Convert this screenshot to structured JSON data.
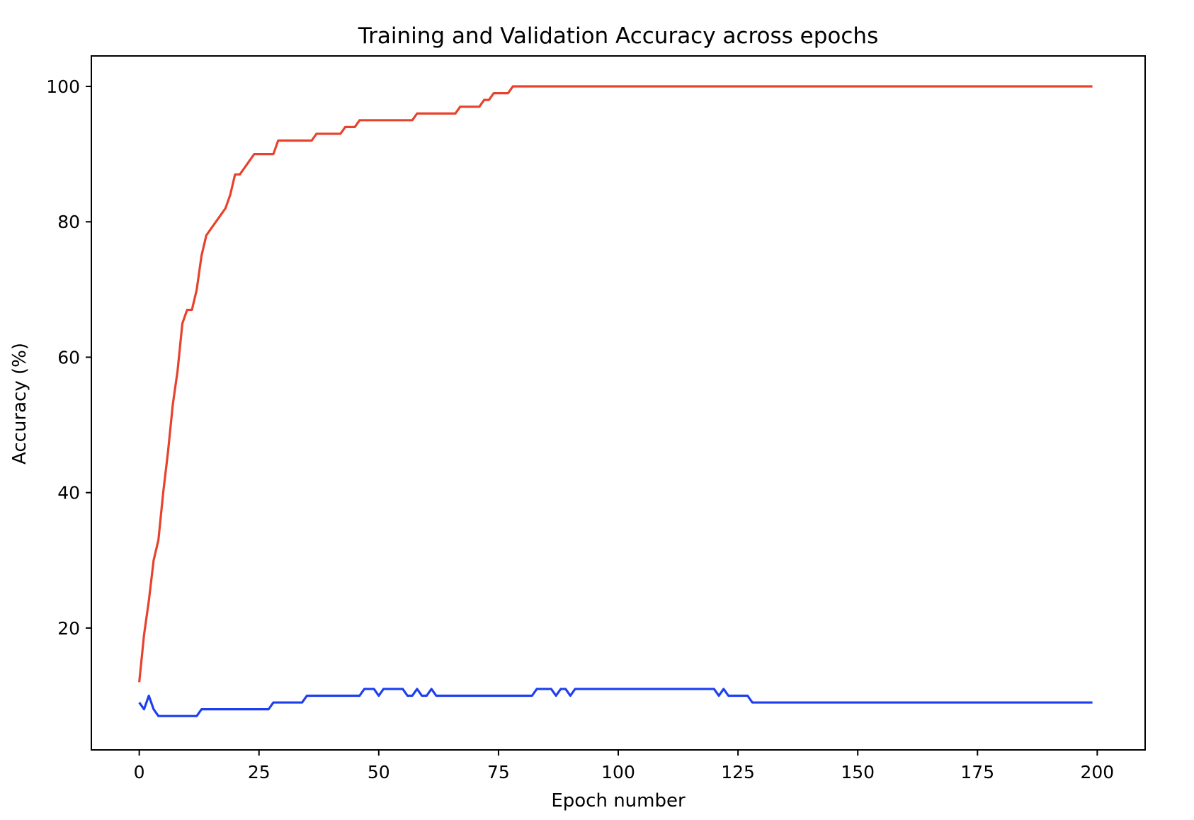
{
  "chart_data": {
    "type": "line",
    "title": "Training and Validation Accuracy across epochs",
    "xlabel": "Epoch number",
    "ylabel": "Accuracy (%)",
    "xlim": [
      -10,
      210
    ],
    "ylim": [
      2,
      104.5
    ],
    "xticks": [
      0,
      25,
      50,
      75,
      100,
      125,
      150,
      175,
      200
    ],
    "yticks": [
      20,
      40,
      60,
      80,
      100
    ],
    "grid": false,
    "legend": "none",
    "series": [
      {
        "color": "#e8412c",
        "points": [
          [
            0,
            12
          ],
          [
            1,
            19
          ],
          [
            2,
            24
          ],
          [
            3,
            30
          ],
          [
            4,
            33
          ],
          [
            5,
            40
          ],
          [
            6,
            46
          ],
          [
            7,
            53
          ],
          [
            8,
            58
          ],
          [
            9,
            65
          ],
          [
            10,
            67
          ],
          [
            11,
            67
          ],
          [
            12,
            70
          ],
          [
            13,
            75
          ],
          [
            14,
            78
          ],
          [
            15,
            79
          ],
          [
            16,
            80
          ],
          [
            17,
            81
          ],
          [
            18,
            82
          ],
          [
            19,
            84
          ],
          [
            20,
            87
          ],
          [
            21,
            87
          ],
          [
            22,
            88
          ],
          [
            23,
            89
          ],
          [
            24,
            90
          ],
          [
            25,
            90
          ],
          [
            26,
            90
          ],
          [
            27,
            90
          ],
          [
            28,
            90
          ],
          [
            29,
            92
          ],
          [
            30,
            92
          ],
          [
            35,
            92
          ],
          [
            36,
            92
          ],
          [
            37,
            93
          ],
          [
            41,
            93
          ],
          [
            42,
            93
          ],
          [
            43,
            94
          ],
          [
            44,
            94
          ],
          [
            45,
            94
          ],
          [
            46,
            95
          ],
          [
            56,
            95
          ],
          [
            57,
            95
          ],
          [
            58,
            96
          ],
          [
            66,
            96
          ],
          [
            67,
            97
          ],
          [
            71,
            97
          ],
          [
            72,
            98
          ],
          [
            73,
            98
          ],
          [
            74,
            99
          ],
          [
            77,
            99
          ],
          [
            78,
            100
          ],
          [
            199,
            100
          ]
        ]
      },
      {
        "color": "#1d3ff0",
        "points": [
          [
            0,
            9
          ],
          [
            1,
            8
          ],
          [
            2,
            10
          ],
          [
            3,
            8
          ],
          [
            4,
            7
          ],
          [
            12,
            7
          ],
          [
            13,
            8
          ],
          [
            27,
            8
          ],
          [
            28,
            9
          ],
          [
            34,
            9
          ],
          [
            35,
            10
          ],
          [
            46,
            10
          ],
          [
            47,
            11
          ],
          [
            49,
            11
          ],
          [
            50,
            10
          ],
          [
            51,
            11
          ],
          [
            55,
            11
          ],
          [
            56,
            10
          ],
          [
            57,
            10
          ],
          [
            58,
            11
          ],
          [
            59,
            10
          ],
          [
            60,
            10
          ],
          [
            61,
            11
          ],
          [
            62,
            10
          ],
          [
            82,
            10
          ],
          [
            83,
            11
          ],
          [
            86,
            11
          ],
          [
            87,
            10
          ],
          [
            88,
            11
          ],
          [
            89,
            11
          ],
          [
            90,
            10
          ],
          [
            91,
            11
          ],
          [
            120,
            11
          ],
          [
            121,
            10
          ],
          [
            122,
            11
          ],
          [
            123,
            10
          ],
          [
            127,
            10
          ],
          [
            128,
            9
          ],
          [
            199,
            9
          ]
        ]
      }
    ]
  }
}
